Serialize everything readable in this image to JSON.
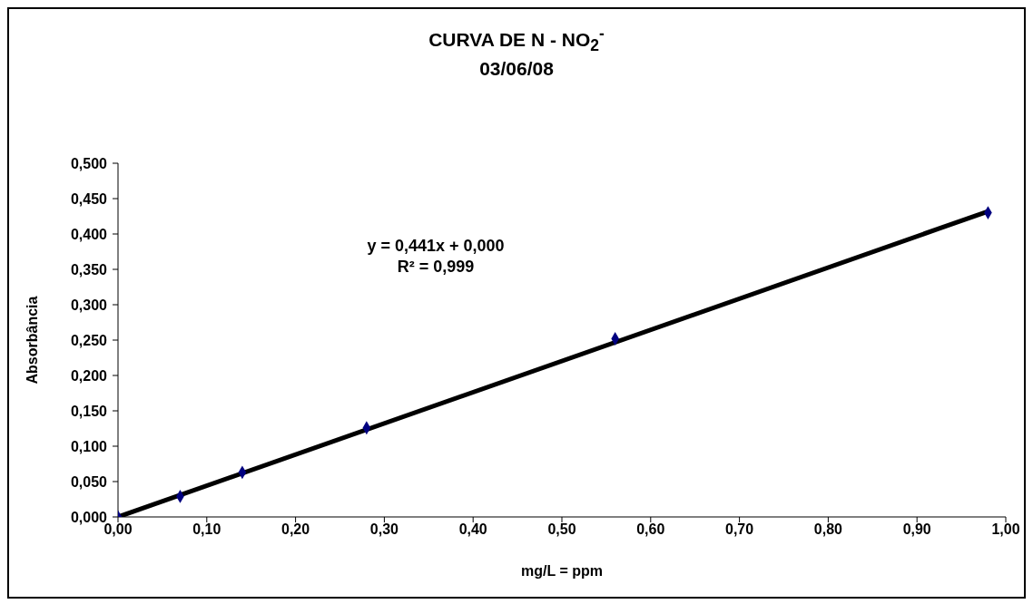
{
  "chart_data": {
    "type": "scatter",
    "title": "CURVA DE N - NO$_{2}$$^{-}$",
    "subtitle": "03/06/08",
    "xlabel": "mg/L = ppm",
    "ylabel": "Absorbância",
    "annotations": [
      "y = 0,441x + 0,000",
      "R² = 0,999"
    ],
    "marker": "diamond",
    "series": [
      {
        "color": "#000080",
        "x": [
          0,
          0.07,
          0.14,
          0.28,
          0.56,
          0.98
        ],
        "values": [
          0,
          0.029,
          0.063,
          0.126,
          0.252,
          0.43
        ]
      },
      {
        "type": "line",
        "color": "#000000",
        "x": [
          0,
          0.98
        ],
        "values": [
          0,
          0.432
        ],
        "marker": "none",
        "line_style": "solid"
      }
    ],
    "xlim": [
      0,
      1
    ],
    "xticks": [
      {
        "value": 0,
        "label": "0,00"
      },
      {
        "value": 0.1,
        "label": "0,10"
      },
      {
        "value": 0.2,
        "label": "0,20"
      },
      {
        "value": 0.3,
        "label": "0,30"
      },
      {
        "value": 0.4,
        "label": "0,40"
      },
      {
        "value": 0.5,
        "label": "0,50"
      },
      {
        "value": 0.6,
        "label": "0,60"
      },
      {
        "value": 0.7,
        "label": "0,70"
      },
      {
        "value": 0.8,
        "label": "0,80"
      },
      {
        "value": 0.9,
        "label": "0,90"
      },
      {
        "value": 1,
        "label": "1,00"
      }
    ],
    "ylim": [
      0,
      0.5
    ],
    "yticks": [
      {
        "value": 0,
        "label": "0,000"
      },
      {
        "value": 0.05,
        "label": "0,050"
      },
      {
        "value": 0.1,
        "label": "0,100"
      },
      {
        "value": 0.15,
        "label": "0,150"
      },
      {
        "value": 0.2,
        "label": "0,200"
      },
      {
        "value": 0.25,
        "label": "0,250"
      },
      {
        "value": 0.3,
        "label": "0,300"
      },
      {
        "value": 0.35,
        "label": "0,350"
      },
      {
        "value": 0.4,
        "label": "0,400"
      },
      {
        "value": 0.45,
        "label": "0,450"
      },
      {
        "value": 0.5,
        "label": "0,500"
      }
    ],
    "grid": false,
    "legend": false
  }
}
